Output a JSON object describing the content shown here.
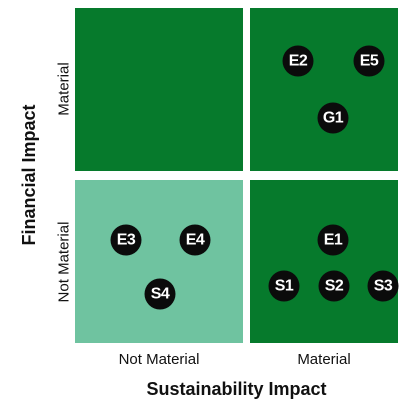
{
  "matrix": {
    "x_axis_title": "Sustainability Impact",
    "y_axis_title": "Financial Impact",
    "x_ticks": {
      "left": "Not Material",
      "right": "Material"
    },
    "y_ticks": {
      "top": "Material",
      "bottom": "Not Material"
    },
    "colors": {
      "material_quadrant": "#067a2c",
      "not_material_quadrant": "#6fc3a0",
      "badge": "#0b0b0b",
      "badge_text": "#ffffff"
    },
    "quadrants": {
      "top_left": {
        "badges": []
      },
      "top_right": {
        "badges": [
          "E2",
          "E5",
          "G1"
        ]
      },
      "bottom_left": {
        "badges": [
          "E3",
          "E4",
          "S4"
        ]
      },
      "bottom_right": {
        "badges": [
          "E1",
          "S1",
          "S2",
          "S3"
        ]
      }
    }
  }
}
